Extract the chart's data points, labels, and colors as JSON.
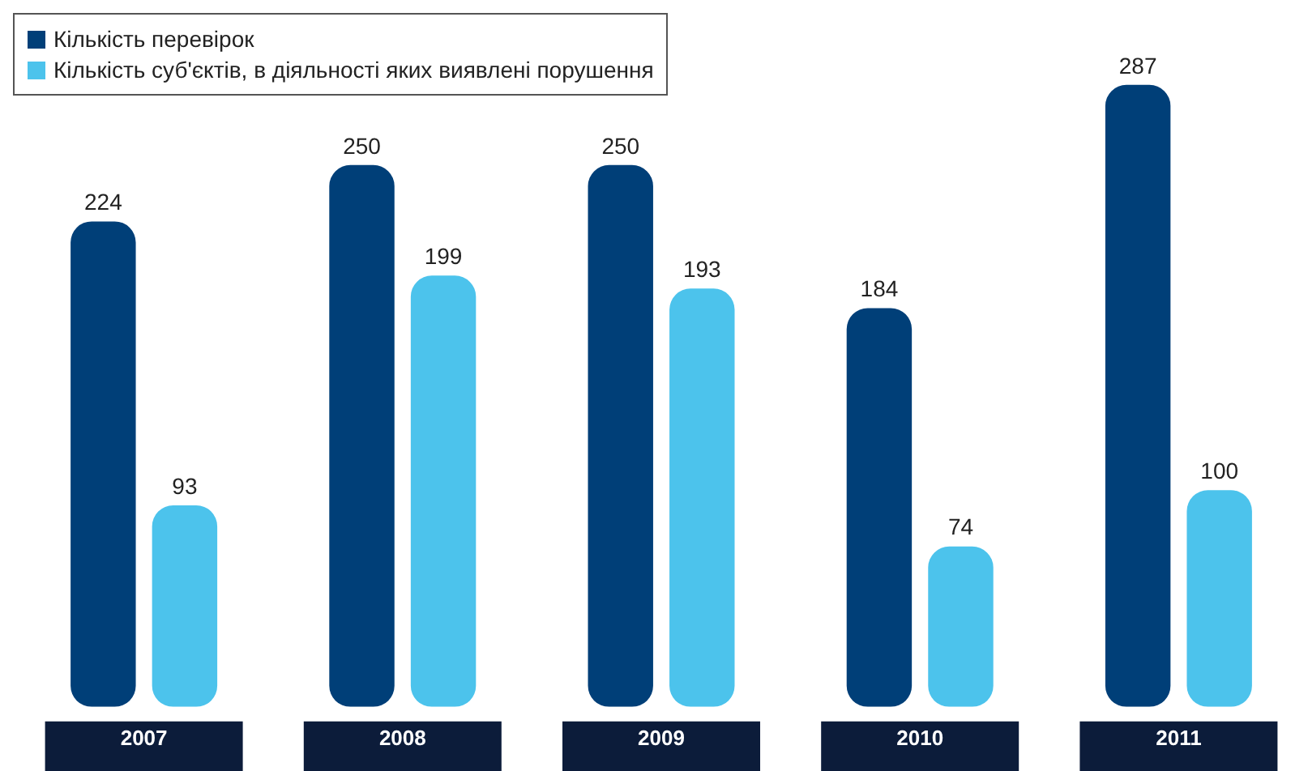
{
  "chart_data": {
    "type": "bar",
    "categories": [
      "2007",
      "2008",
      "2009",
      "2010",
      "2011"
    ],
    "series": [
      {
        "name": "Кількість перевірок",
        "color": "#003f78",
        "values": [
          224,
          250,
          250,
          184,
          287
        ]
      },
      {
        "name": "Кількість суб'єктів, в діяльності яких виявлені порушення",
        "color": "#4cc3ec",
        "values": [
          93,
          199,
          193,
          74,
          100
        ]
      }
    ],
    "data_labels": true,
    "legend": "top left",
    "grid": false
  }
}
